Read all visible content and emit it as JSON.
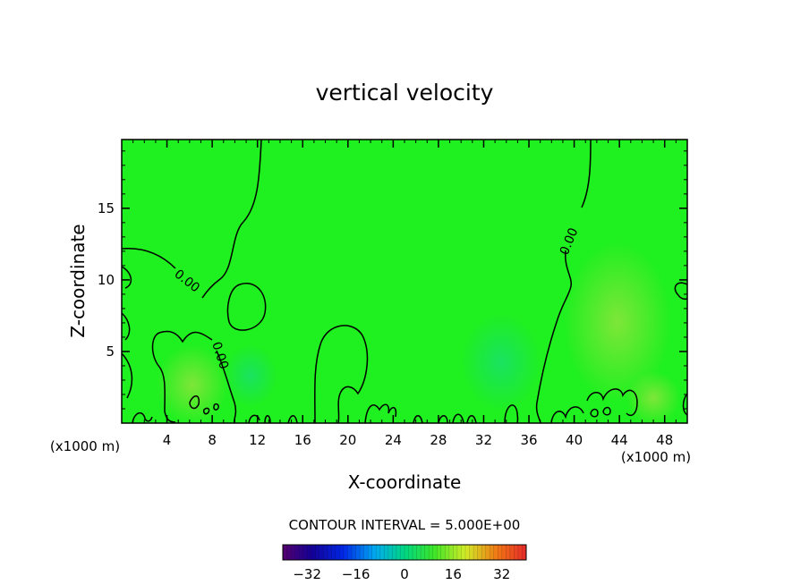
{
  "chart_data": {
    "type": "heatmap",
    "title": "vertical velocity",
    "xlabel": "X-coordinate",
    "ylabel": "Z-coordinate",
    "x_unit_label": "(x1000 m)",
    "x_unit_label_bottom": "(x1000 m)",
    "xlim": [
      0,
      50
    ],
    "ylim": [
      0,
      19.8
    ],
    "x_ticks": [
      4,
      8,
      12,
      16,
      20,
      24,
      28,
      32,
      36,
      40,
      44,
      48
    ],
    "y_ticks": [
      5,
      10,
      15
    ],
    "contour_interval_text": "CONTOUR INTERVAL = 5.000E+00",
    "contour_labels": [
      "0.00",
      "0.00",
      "0.00"
    ],
    "colorbar": {
      "range": [
        -40,
        40
      ],
      "ticks": [
        -32,
        -16,
        0,
        16,
        32
      ],
      "tick_labels": [
        "-32",
        "-16",
        "0",
        "16",
        "32"
      ]
    },
    "background_field_color": "#1ff01f",
    "weak_positive_color": "#7fe63a",
    "weak_negative_color": "#20e06a",
    "grid": false
  }
}
